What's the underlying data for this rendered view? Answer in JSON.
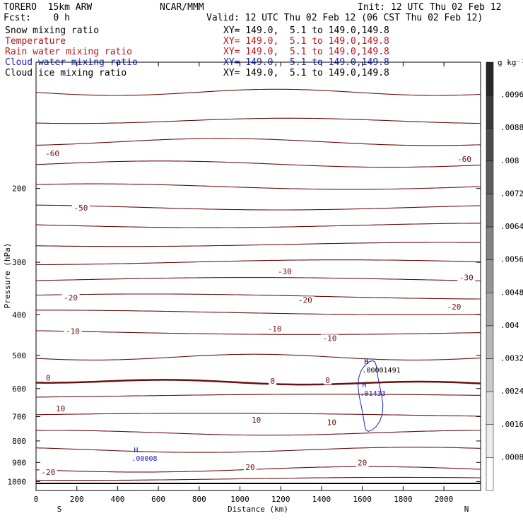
{
  "header": {
    "model": "TORERO  15km ARW",
    "org": "NCAR/MMM",
    "init": "Init: 12 UTC Thu 02 Feb 12",
    "fcst": "Fcst:    0 h",
    "valid": "Valid: 12 UTC Thu 02 Feb 12 (06 CST Thu 02 Feb 12)",
    "fields": [
      {
        "name": "Snow mixing ratio",
        "xy": "XY= 149.0,  5.1 to 149.0,149.8",
        "color": "#000000"
      },
      {
        "name": "Temperature",
        "xy": "XY= 149.0,  5.1 to 149.0,149.8",
        "color": "#b5161a"
      },
      {
        "name": "Rain water mixing ratio",
        "xy": "XY= 149.0,  5.1 to 149.0,149.8",
        "color": "#b5161a"
      },
      {
        "name": "Cloud water mixing ratio",
        "xy": "XY= 149.0,  5.1 to 149.0,149.8",
        "color": "#1b22b5"
      },
      {
        "name": "Cloud ice mixing ratio",
        "xy": "XY= 149.0,  5.1 to 149.0,149.8",
        "color": "#000000"
      }
    ]
  },
  "chart_data": {
    "type": "contour",
    "xlabel": "Distance (km)",
    "ylabel": "Pressure (hPa)",
    "x_ticks": [
      0,
      200,
      400,
      600,
      800,
      1000,
      1200,
      1400,
      1600,
      1800,
      2000
    ],
    "y_ticks": [
      200,
      300,
      400,
      500,
      600,
      700,
      800,
      900,
      1000
    ],
    "xlim": [
      0,
      2180
    ],
    "y_axis": "pressure (log, inverted)",
    "ylim": [
      1050,
      100
    ],
    "x_end_labels": {
      "left": "S",
      "right": "N"
    },
    "colorbar": {
      "units": "g kg⁻¹",
      "ticks": [
        ".0096",
        ".0088",
        ".008",
        ".0072",
        ".0064",
        ".0056",
        ".0048",
        ".004",
        ".0032",
        ".0024",
        ".0016",
        ".0008"
      ]
    },
    "temperature_labels": [
      {
        "text": "-60",
        "x": 80,
        "p": 167
      },
      {
        "text": "-60",
        "x": 2100,
        "p": 172
      },
      {
        "text": "-50",
        "x": 220,
        "p": 225
      },
      {
        "text": "-30",
        "x": 1220,
        "p": 319
      },
      {
        "text": "-30",
        "x": 2110,
        "p": 330
      },
      {
        "text": "-20",
        "x": 170,
        "p": 368
      },
      {
        "text": "-20",
        "x": 1320,
        "p": 373
      },
      {
        "text": "-20",
        "x": 2050,
        "p": 387
      },
      {
        "text": "-10",
        "x": 180,
        "p": 443
      },
      {
        "text": "-10",
        "x": 1170,
        "p": 437
      },
      {
        "text": "-10",
        "x": 1440,
        "p": 460
      },
      {
        "text": "0",
        "x": 60,
        "p": 572
      },
      {
        "text": "0",
        "x": 1160,
        "p": 582
      },
      {
        "text": "0",
        "x": 1430,
        "p": 580
      },
      {
        "text": "10",
        "x": 120,
        "p": 677
      },
      {
        "text": "10",
        "x": 1080,
        "p": 720
      },
      {
        "text": "10",
        "x": 1450,
        "p": 731
      },
      {
        "text": "20",
        "x": 1600,
        "p": 912
      },
      {
        "text": "20",
        "x": 1050,
        "p": 935
      },
      {
        "text": "-20",
        "x": 60,
        "p": 960
      }
    ],
    "annotations": [
      {
        "symbol": "H",
        "value": ".00001491",
        "x": 1620,
        "p": 545,
        "field": "Cloud ice mixing ratio"
      },
      {
        "symbol": "H",
        "value": ".01433",
        "x": 1610,
        "p": 620,
        "field": "Cloud water mixing ratio"
      },
      {
        "symbol": "H",
        "value": ".00008",
        "x": 490,
        "p": 885,
        "field": "Cloud water mixing ratio"
      }
    ]
  }
}
